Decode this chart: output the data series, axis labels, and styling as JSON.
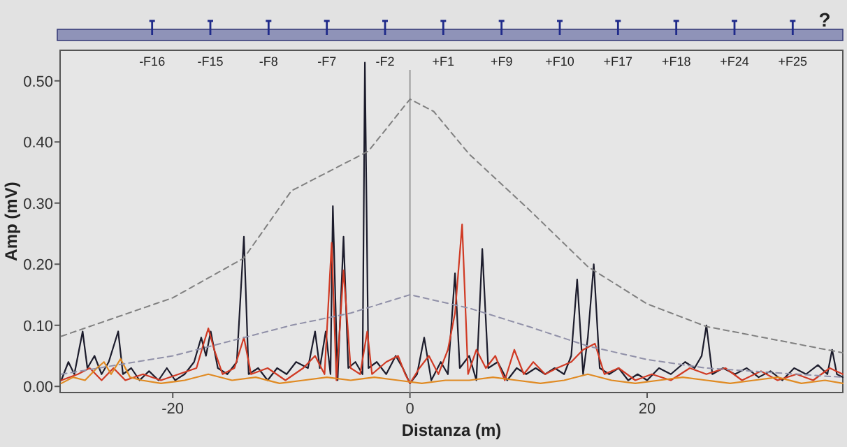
{
  "chart_data": {
    "type": "line",
    "xlabel": "Distanza (m)",
    "ylabel": "Amp (mV)",
    "xlim": [
      -29.5,
      36.5
    ],
    "xticks": [
      -20,
      0,
      20
    ],
    "ylim": [
      -0.01,
      0.55
    ],
    "yticks": [
      {
        "value": 0,
        "label": "0.00"
      },
      {
        "value": 0.1,
        "label": "0.10"
      },
      {
        "value": 0.2,
        "label": "0.20"
      },
      {
        "value": 0.3,
        "label": "0.30"
      },
      {
        "value": 0.4,
        "label": "0.40"
      },
      {
        "value": 0.5,
        "label": "0.50"
      }
    ],
    "annotations": [
      "?",
      "-F16",
      "-F15",
      "-F8",
      "-F7",
      "-F2",
      "+F1",
      "+F9",
      "+F10",
      "+F17",
      "+F18",
      "+F24",
      "+F25"
    ],
    "ref_lines": [
      {
        "axis": "x",
        "value": 0,
        "color": "#9a9a9a"
      }
    ],
    "grid": false,
    "series": [
      {
        "color": "#1c1c2c",
        "x": [
          -29.4,
          -28.8,
          -28.3,
          -27.6,
          -27.2,
          -26.6,
          -26.0,
          -25.4,
          -24.6,
          -24.2,
          -23.5,
          -22.8,
          -22.0,
          -21.2,
          -20.5,
          -19.8,
          -19.0,
          -18.2,
          -17.6,
          -17.2,
          -16.8,
          -16.2,
          -15.4,
          -14.6,
          -14.0,
          -13.6,
          -12.8,
          -12.0,
          -11.2,
          -10.4,
          -9.6,
          -8.6,
          -8.0,
          -7.6,
          -7.1,
          -6.7,
          -6.5,
          -6.1,
          -5.6,
          -5.2,
          -4.6,
          -4.0,
          -3.8,
          -3.5,
          -2.8,
          -2.0,
          -1.2,
          -0.6,
          0,
          0.6,
          1.2,
          1.8,
          2.6,
          3.2,
          3.8,
          4.2,
          5.0,
          5.6,
          6.1,
          6.6,
          7.4,
          8.2,
          9.0,
          9.8,
          10.6,
          11.4,
          12.2,
          13.0,
          13.6,
          14.1,
          14.6,
          15.0,
          15.5,
          16.0,
          16.8,
          17.6,
          18.4,
          19.2,
          20.0,
          21.0,
          22.0,
          23.2,
          24.0,
          24.6,
          25.0,
          25.5,
          26.4,
          27.4,
          28.4,
          29.4,
          30.4,
          31.4,
          32.4,
          33.4,
          34.4,
          35.2,
          35.6,
          36.0,
          36.5
        ],
        "values": [
          0.01,
          0.04,
          0.02,
          0.09,
          0.03,
          0.05,
          0.02,
          0.04,
          0.09,
          0.02,
          0.03,
          0.01,
          0.025,
          0.01,
          0.03,
          0.01,
          0.02,
          0.04,
          0.08,
          0.05,
          0.09,
          0.03,
          0.02,
          0.04,
          0.245,
          0.02,
          0.03,
          0.01,
          0.03,
          0.02,
          0.04,
          0.03,
          0.09,
          0.03,
          0.09,
          0.02,
          0.295,
          0.01,
          0.245,
          0.03,
          0.04,
          0.02,
          0.53,
          0.03,
          0.04,
          0.02,
          0.05,
          0.03,
          0.005,
          0.02,
          0.08,
          0.01,
          0.04,
          0.02,
          0.185,
          0.03,
          0.05,
          0.01,
          0.225,
          0.03,
          0.04,
          0.01,
          0.03,
          0.02,
          0.03,
          0.02,
          0.03,
          0.02,
          0.05,
          0.175,
          0.02,
          0.08,
          0.2,
          0.03,
          0.02,
          0.03,
          0.01,
          0.02,
          0.01,
          0.03,
          0.02,
          0.04,
          0.03,
          0.05,
          0.1,
          0.02,
          0.03,
          0.02,
          0.03,
          0.015,
          0.025,
          0.01,
          0.03,
          0.02,
          0.035,
          0.02,
          0.06,
          0.02,
          0.015
        ]
      },
      {
        "color": "#d03a24",
        "x": [
          -29.4,
          -28,
          -27,
          -26,
          -25,
          -24,
          -22.5,
          -21,
          -19.5,
          -18,
          -17.4,
          -17.0,
          -16.5,
          -15.8,
          -14.8,
          -14.0,
          -13.4,
          -12,
          -10.5,
          -9,
          -8,
          -7.2,
          -6.6,
          -6.2,
          -5.6,
          -5.0,
          -4.2,
          -3.6,
          -3.2,
          -2,
          -1,
          -0.4,
          0,
          0.8,
          1.6,
          2.4,
          3.2,
          3.8,
          4.4,
          4.9,
          5.6,
          6.4,
          7.2,
          8.0,
          8.8,
          9.6,
          10.4,
          11.4,
          12.4,
          13.6,
          14.6,
          15.6,
          16.4,
          17.6,
          19,
          20.4,
          22,
          23.6,
          25,
          26.6,
          28,
          29.6,
          31,
          32.6,
          34,
          35.4,
          36.5
        ],
        "values": [
          0.01,
          0.02,
          0.03,
          0.01,
          0.03,
          0.01,
          0.02,
          0.01,
          0.02,
          0.03,
          0.07,
          0.095,
          0.06,
          0.02,
          0.03,
          0.08,
          0.02,
          0.03,
          0.01,
          0.03,
          0.05,
          0.02,
          0.235,
          0.01,
          0.19,
          0.03,
          0.02,
          0.09,
          0.02,
          0.04,
          0.05,
          0.02,
          0.005,
          0.03,
          0.05,
          0.02,
          0.06,
          0.12,
          0.265,
          0.02,
          0.06,
          0.03,
          0.05,
          0.01,
          0.06,
          0.02,
          0.04,
          0.02,
          0.03,
          0.04,
          0.06,
          0.07,
          0.02,
          0.03,
          0.01,
          0.02,
          0.01,
          0.03,
          0.02,
          0.03,
          0.01,
          0.025,
          0.01,
          0.02,
          0.01,
          0.03,
          0.02
        ]
      },
      {
        "color": "#e08a22",
        "x": [
          -29.4,
          -28.4,
          -27.4,
          -26.4,
          -25.8,
          -25.2,
          -24.4,
          -23.6,
          -22.6,
          -21,
          -19,
          -17,
          -15,
          -13,
          -11,
          -9,
          -7,
          -5,
          -3,
          -1,
          1,
          3,
          5,
          7,
          9,
          11,
          13,
          15,
          17,
          19,
          21,
          23,
          25,
          27,
          29,
          31,
          33,
          35,
          36.5
        ],
        "values": [
          0.005,
          0.015,
          0.01,
          0.03,
          0.04,
          0.02,
          0.045,
          0.015,
          0.01,
          0.005,
          0.01,
          0.02,
          0.01,
          0.015,
          0.005,
          0.01,
          0.015,
          0.01,
          0.015,
          0.01,
          0.005,
          0.01,
          0.01,
          0.015,
          0.01,
          0.005,
          0.01,
          0.02,
          0.01,
          0.005,
          0.01,
          0.015,
          0.01,
          0.005,
          0.01,
          0.015,
          0.005,
          0.01,
          0.005
        ]
      },
      {
        "color": "#808080",
        "line_style": "dashed",
        "x": [
          -29.4,
          -20,
          -14,
          -10,
          -3.5,
          0,
          2,
          5,
          10,
          15,
          20,
          25,
          36.5
        ],
        "values": [
          0.082,
          0.145,
          0.21,
          0.32,
          0.385,
          0.47,
          0.45,
          0.38,
          0.29,
          0.196,
          0.135,
          0.098,
          0.055
        ]
      },
      {
        "color": "#9090a8",
        "line_style": "dashed",
        "x": [
          -29.4,
          -20,
          -10,
          -5,
          0,
          5,
          10,
          15,
          20,
          25,
          36.5
        ],
        "values": [
          0.02,
          0.05,
          0.1,
          0.12,
          0.15,
          0.128,
          0.098,
          0.066,
          0.044,
          0.03,
          0.015
        ]
      }
    ]
  }
}
